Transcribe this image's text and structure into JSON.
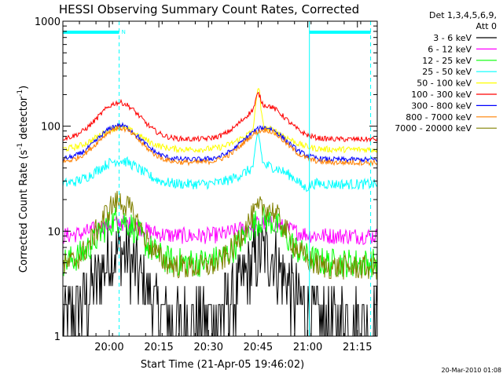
{
  "chart_data": {
    "type": "line",
    "title": "HESSI Observing Summary Count Rates, Corrected",
    "xlabel": "Start Time (21-Apr-05 19:46:02)",
    "ylabel_main": "Corrected Count Rate (s",
    "ylabel_sup1": "-1",
    "ylabel_mid": " detector",
    "ylabel_sup2": "-1",
    "ylabel_end": ")",
    "yscale": "log",
    "ylim": [
      1,
      1000
    ],
    "xlim_minutes": [
      0,
      95
    ],
    "x_ticks": [
      {
        "m": 14,
        "label": "20:00"
      },
      {
        "m": 29,
        "label": "20:15"
      },
      {
        "m": 44,
        "label": "20:30"
      },
      {
        "m": 59,
        "label": "20:45"
      },
      {
        "m": 74,
        "label": "21:00"
      },
      {
        "m": 89,
        "label": "21:15"
      }
    ],
    "y_ticks": [
      {
        "v": 1,
        "label": "1"
      },
      {
        "v": 10,
        "label": "10"
      },
      {
        "v": 100,
        "label": "100"
      },
      {
        "v": 1000,
        "label": "1000"
      }
    ],
    "legend_header": [
      "Det 1,3,4,5,6,9,",
      "Att 0"
    ],
    "legend_position": "right",
    "timestamp": "20-Mar-2010 01:08",
    "flag_label": "N",
    "flag_color": "#00ffff",
    "flag_intervals": [
      [
        0,
        17
      ],
      [
        74.5,
        93
      ]
    ],
    "dashed_markers": [
      17,
      93
    ],
    "solid_markers": [
      74.5
    ],
    "series": [
      {
        "name": "3 - 6 keV",
        "color": "#000000",
        "baseline": 1.4,
        "peak1": 6.5,
        "peak2": 6.2,
        "noise": 0.35,
        "floor": 1
      },
      {
        "name": "6 - 12 keV",
        "color": "#ff00ff",
        "baseline": 9,
        "peak1": 12,
        "peak2": 12,
        "noise": 0.08
      },
      {
        "name": "12 - 25 keV",
        "color": "#00ff00",
        "baseline": 5,
        "peak1": 13,
        "peak2": 13,
        "noise": 0.14
      },
      {
        "name": "25 - 50 keV",
        "color": "#00ffff",
        "baseline": 28,
        "peak1": 47,
        "peak2": 42,
        "noise": 0.05,
        "spike": 85,
        "dip": 24
      },
      {
        "name": "50 - 100 keV",
        "color": "#ffff00",
        "baseline": 60,
        "peak1": 97,
        "peak2": 95,
        "noise": 0.03,
        "spike": 240
      },
      {
        "name": "100 - 300 keV",
        "color": "#ff0000",
        "baseline": 75,
        "peak1": 168,
        "peak2": 158,
        "noise": 0.025,
        "spike": 210
      },
      {
        "name": "300 - 800 keV",
        "color": "#0000ff",
        "baseline": 48,
        "peak1": 102,
        "peak2": 97,
        "noise": 0.025
      },
      {
        "name": "800 - 7000 keV",
        "color": "#ff8000",
        "baseline": 45,
        "peak1": 96,
        "peak2": 92,
        "noise": 0.025
      },
      {
        "name": "7000 - 20000 keV",
        "color": "#808000",
        "baseline": 4.5,
        "peak1": 19,
        "peak2": 17,
        "noise": 0.12
      }
    ],
    "peak_centers_minutes": [
      17,
      61
    ]
  }
}
